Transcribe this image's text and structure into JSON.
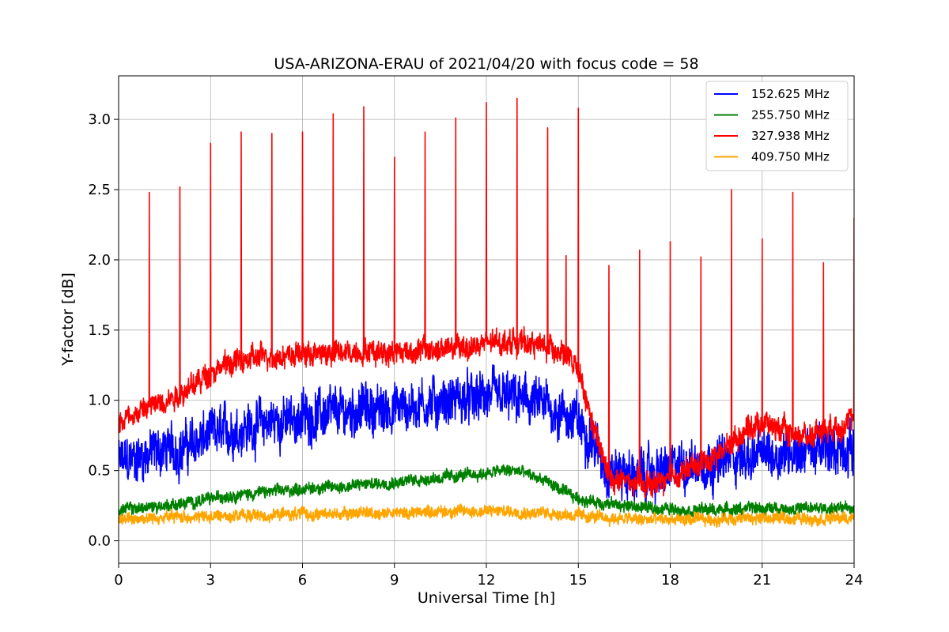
{
  "chart_data": {
    "type": "line",
    "title": "USA-ARIZONA-ERAU of 2021/04/20 with focus code = 58",
    "xlabel": "Universal Time [h]",
    "ylabel": "Y-factor [dB]",
    "xlim": [
      0,
      24
    ],
    "ylim": [
      -0.16,
      3.31
    ],
    "xticks": [
      0,
      3,
      6,
      9,
      12,
      15,
      18,
      21,
      24
    ],
    "yticks": [
      0.0,
      0.5,
      1.0,
      1.5,
      2.0,
      2.5,
      3.0
    ],
    "xtick_labels": [
      "0",
      "3",
      "6",
      "9",
      "12",
      "15",
      "18",
      "21",
      "24"
    ],
    "ytick_labels": [
      "0.0",
      "0.5",
      "1.0",
      "1.5",
      "2.0",
      "2.5",
      "3.0"
    ],
    "grid": true,
    "legend_position": "top-right",
    "series": [
      {
        "name": "152.625 MHz",
        "color": "#0000ff",
        "x": [
          0,
          0.5,
          1,
          1.5,
          2,
          2.5,
          3,
          3.5,
          4,
          4.5,
          5,
          5.5,
          6,
          6.5,
          7,
          7.5,
          8,
          8.5,
          9,
          9.5,
          10,
          10.5,
          11,
          11.5,
          12,
          12.5,
          13,
          13.5,
          14,
          14.5,
          15,
          15.5,
          16,
          16.5,
          17,
          17.5,
          18,
          18.5,
          19,
          19.5,
          20,
          20.5,
          21,
          21.5,
          22,
          22.5,
          23,
          23.5,
          24
        ],
        "y": [
          0.55,
          0.58,
          0.62,
          0.65,
          0.65,
          0.7,
          0.75,
          0.78,
          0.8,
          0.82,
          0.85,
          0.85,
          0.88,
          0.9,
          0.9,
          0.92,
          0.95,
          0.92,
          0.95,
          0.95,
          0.98,
          0.98,
          1.0,
          1.0,
          1.02,
          1.02,
          1.0,
          0.98,
          0.95,
          0.9,
          0.85,
          0.7,
          0.5,
          0.48,
          0.45,
          0.48,
          0.5,
          0.55,
          0.55,
          0.55,
          0.6,
          0.6,
          0.62,
          0.62,
          0.65,
          0.65,
          0.65,
          0.65,
          0.65
        ],
        "noise": 0.28
      },
      {
        "name": "255.750 MHz",
        "color": "#008000",
        "x": [
          0,
          0.5,
          1,
          1.5,
          2,
          2.5,
          3,
          3.5,
          4,
          4.5,
          5,
          5.5,
          6,
          6.5,
          7,
          7.5,
          8,
          8.5,
          9,
          9.5,
          10,
          10.5,
          11,
          11.5,
          12,
          12.5,
          13,
          13.5,
          14,
          14.5,
          15,
          15.5,
          16,
          16.5,
          17,
          17.5,
          18,
          18.5,
          19,
          19.5,
          20,
          20.5,
          21,
          21.5,
          22,
          22.5,
          23,
          23.5,
          24
        ],
        "y": [
          0.22,
          0.23,
          0.24,
          0.25,
          0.26,
          0.28,
          0.3,
          0.32,
          0.33,
          0.34,
          0.35,
          0.36,
          0.37,
          0.38,
          0.38,
          0.39,
          0.4,
          0.41,
          0.42,
          0.43,
          0.44,
          0.45,
          0.46,
          0.47,
          0.48,
          0.5,
          0.5,
          0.46,
          0.42,
          0.35,
          0.3,
          0.28,
          0.26,
          0.25,
          0.24,
          0.23,
          0.23,
          0.22,
          0.22,
          0.22,
          0.22,
          0.23,
          0.23,
          0.23,
          0.23,
          0.23,
          0.23,
          0.23,
          0.23
        ],
        "noise": 0.07
      },
      {
        "name": "327.938 MHz",
        "color": "#ff0000",
        "x": [
          0,
          0.5,
          1,
          1.5,
          2,
          2.5,
          3,
          3.5,
          4,
          4.5,
          5,
          5.5,
          6,
          6.5,
          7,
          7.5,
          8,
          8.5,
          9,
          9.5,
          10,
          10.5,
          11,
          11.5,
          12,
          12.5,
          13,
          13.5,
          14,
          14.5,
          15,
          15.5,
          16,
          16.5,
          17,
          17.5,
          18,
          18.5,
          19,
          19.5,
          20,
          20.5,
          21,
          21.5,
          22,
          22.5,
          23,
          23.5,
          24
        ],
        "y": [
          0.85,
          0.9,
          0.95,
          1.0,
          1.05,
          1.12,
          1.2,
          1.25,
          1.28,
          1.3,
          1.32,
          1.32,
          1.33,
          1.33,
          1.34,
          1.34,
          1.35,
          1.35,
          1.35,
          1.35,
          1.36,
          1.36,
          1.37,
          1.38,
          1.4,
          1.42,
          1.42,
          1.4,
          1.38,
          1.35,
          1.2,
          0.8,
          0.45,
          0.42,
          0.4,
          0.4,
          0.45,
          0.5,
          0.55,
          0.6,
          0.7,
          0.8,
          0.85,
          0.8,
          0.75,
          0.75,
          0.8,
          0.82,
          0.85
        ],
        "noise": 0.14,
        "spikes": [
          {
            "x": 1,
            "y": 2.48
          },
          {
            "x": 2,
            "y": 2.52
          },
          {
            "x": 3,
            "y": 2.83
          },
          {
            "x": 4,
            "y": 2.91
          },
          {
            "x": 5,
            "y": 2.9
          },
          {
            "x": 6,
            "y": 2.91
          },
          {
            "x": 7,
            "y": 3.04
          },
          {
            "x": 8,
            "y": 3.09
          },
          {
            "x": 9,
            "y": 2.73
          },
          {
            "x": 10,
            "y": 2.91
          },
          {
            "x": 11,
            "y": 3.01
          },
          {
            "x": 12,
            "y": 3.12
          },
          {
            "x": 13,
            "y": 3.15
          },
          {
            "x": 14,
            "y": 2.94
          },
          {
            "x": 14.6,
            "y": 2.03
          },
          {
            "x": 15,
            "y": 3.08
          },
          {
            "x": 16,
            "y": 1.96
          },
          {
            "x": 17,
            "y": 2.07
          },
          {
            "x": 18,
            "y": 2.13
          },
          {
            "x": 19,
            "y": 2.02
          },
          {
            "x": 20,
            "y": 2.5
          },
          {
            "x": 21,
            "y": 2.15
          },
          {
            "x": 22,
            "y": 2.48
          },
          {
            "x": 23,
            "y": 1.98
          },
          {
            "x": 24,
            "y": 2.3
          }
        ]
      },
      {
        "name": "409.750 MHz",
        "color": "#ffa500",
        "x": [
          0,
          0.5,
          1,
          1.5,
          2,
          2.5,
          3,
          3.5,
          4,
          4.5,
          5,
          5.5,
          6,
          6.5,
          7,
          7.5,
          8,
          8.5,
          9,
          9.5,
          10,
          10.5,
          11,
          11.5,
          12,
          12.5,
          13,
          13.5,
          14,
          14.5,
          15,
          15.5,
          16,
          16.5,
          17,
          17.5,
          18,
          18.5,
          19,
          19.5,
          20,
          20.5,
          21,
          21.5,
          22,
          22.5,
          23,
          23.5,
          24
        ],
        "y": [
          0.16,
          0.16,
          0.16,
          0.17,
          0.17,
          0.17,
          0.17,
          0.18,
          0.18,
          0.18,
          0.18,
          0.19,
          0.19,
          0.19,
          0.19,
          0.2,
          0.2,
          0.2,
          0.2,
          0.2,
          0.21,
          0.21,
          0.21,
          0.21,
          0.21,
          0.21,
          0.21,
          0.2,
          0.2,
          0.19,
          0.18,
          0.17,
          0.16,
          0.16,
          0.15,
          0.15,
          0.15,
          0.15,
          0.15,
          0.15,
          0.16,
          0.16,
          0.16,
          0.16,
          0.16,
          0.16,
          0.16,
          0.16,
          0.16
        ],
        "noise": 0.07
      }
    ]
  }
}
